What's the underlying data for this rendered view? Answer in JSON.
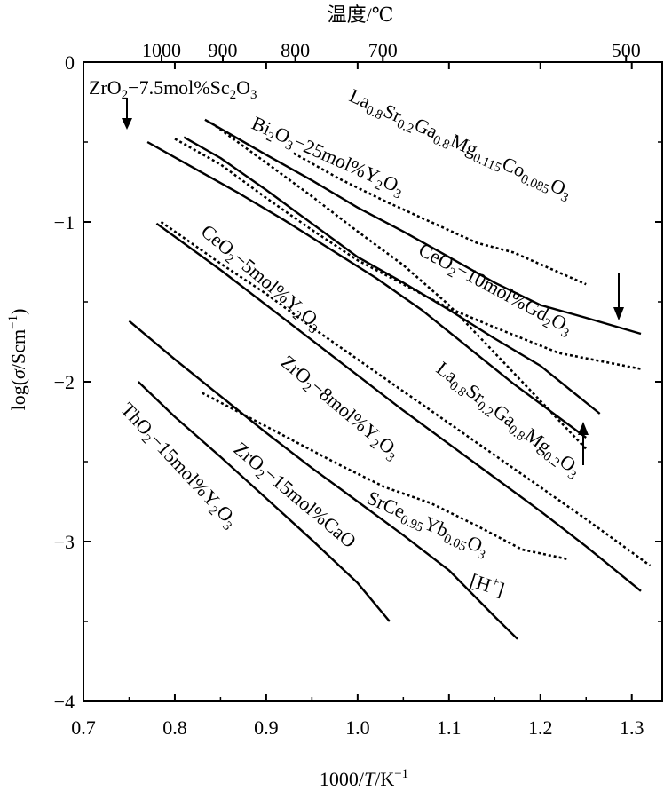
{
  "chart_data": {
    "type": "line",
    "title": "",
    "xlabel": "1000/T/K⁻¹",
    "ylabel": "log(σ/Scm⁻¹)",
    "xlim": [
      0.7,
      1.3333
    ],
    "ylim": [
      -4,
      0
    ],
    "x_ticks": [
      "0.7",
      "0.8",
      "0.9",
      "1.0",
      "1.1",
      "1.2",
      "1.3"
    ],
    "y_ticks": [
      "0",
      "−1",
      "−2",
      "−3",
      "−4"
    ],
    "top_axis": {
      "label": "温度/℃",
      "ticks": [
        {
          "label": "1000",
          "x": 0.7855
        },
        {
          "label": "900",
          "x": 0.8525
        },
        {
          "label": "800",
          "x": 0.9318
        },
        {
          "label": "700",
          "x": 1.0276
        },
        {
          "label": "500",
          "x": 1.2937
        }
      ]
    },
    "series": [
      {
        "name": "ZrO2–7.5mol%Sc2O3",
        "style": "dashed",
        "points": [
          [
            0.84,
            -0.38
          ],
          [
            0.9,
            -0.63
          ],
          [
            0.95,
            -0.84
          ],
          [
            1.0,
            -1.06
          ],
          [
            1.05,
            -1.27
          ],
          [
            1.1,
            -1.52
          ],
          [
            1.15,
            -1.82
          ],
          [
            1.2,
            -2.12
          ],
          [
            1.25,
            -2.42
          ]
        ]
      },
      {
        "name": "La0.8Sr0.2Ga0.8Mg0.115Co0.085O3",
        "style": "solid",
        "points": [
          [
            0.833,
            -0.36
          ],
          [
            0.9,
            -0.58
          ],
          [
            0.95,
            -0.74
          ],
          [
            1.0,
            -0.91
          ],
          [
            1.05,
            -1.06
          ],
          [
            1.1,
            -1.22
          ],
          [
            1.15,
            -1.38
          ],
          [
            1.2,
            -1.52
          ],
          [
            1.25,
            -1.6
          ],
          [
            1.31,
            -1.7
          ]
        ]
      },
      {
        "name": "Bi2O3–25mol%Y2O3",
        "style": "dashed",
        "points": [
          [
            0.93,
            -0.57
          ],
          [
            0.98,
            -0.73
          ],
          [
            1.03,
            -0.87
          ],
          [
            1.08,
            -1.0
          ],
          [
            1.13,
            -1.13
          ],
          [
            1.17,
            -1.19
          ],
          [
            1.25,
            -1.39
          ]
        ]
      },
      {
        "name": "CeO2–10mol%Gd2O3",
        "style": "solid",
        "points": [
          [
            0.81,
            -0.47
          ],
          [
            0.85,
            -0.6
          ],
          [
            0.9,
            -0.8
          ],
          [
            0.95,
            -1.01
          ],
          [
            1.0,
            -1.22
          ],
          [
            1.05,
            -1.38
          ],
          [
            1.1,
            -1.55
          ],
          [
            1.15,
            -1.73
          ],
          [
            1.2,
            -1.9
          ],
          [
            1.265,
            -2.2
          ]
        ]
      },
      {
        "name": "CeO2–10mol%Gd2O3 (dotted)",
        "style": "dashed",
        "points": [
          [
            0.8,
            -0.48
          ],
          [
            0.85,
            -0.64
          ],
          [
            0.9,
            -0.85
          ],
          [
            0.95,
            -1.05
          ],
          [
            1.0,
            -1.24
          ],
          [
            1.05,
            -1.39
          ],
          [
            1.1,
            -1.54
          ],
          [
            1.15,
            -1.66
          ],
          [
            1.22,
            -1.82
          ],
          [
            1.31,
            -1.92
          ]
        ]
      },
      {
        "name": "La0.8Sr0.2Ga0.8Mg0.2O3",
        "style": "solid",
        "points": [
          [
            0.77,
            -0.5
          ],
          [
            0.82,
            -0.66
          ],
          [
            0.87,
            -0.82
          ],
          [
            0.92,
            -0.99
          ],
          [
            0.97,
            -1.17
          ],
          [
            1.02,
            -1.35
          ],
          [
            1.07,
            -1.55
          ],
          [
            1.12,
            -1.78
          ],
          [
            1.17,
            -2.01
          ],
          [
            1.25,
            -2.35
          ]
        ]
      },
      {
        "name": "CeO2–5mol%Y2O3",
        "style": "dashed",
        "points": [
          [
            0.785,
            -1.0
          ],
          [
            0.85,
            -1.26
          ],
          [
            0.9,
            -1.45
          ],
          [
            0.95,
            -1.66
          ],
          [
            1.0,
            -1.86
          ],
          [
            1.05,
            -2.06
          ],
          [
            1.1,
            -2.26
          ],
          [
            1.15,
            -2.46
          ],
          [
            1.2,
            -2.66
          ],
          [
            1.25,
            -2.86
          ],
          [
            1.32,
            -3.15
          ]
        ]
      },
      {
        "name": "ZrO2–8mol%Y2O3",
        "style": "solid",
        "points": [
          [
            0.78,
            -1.01
          ],
          [
            0.85,
            -1.3
          ],
          [
            0.9,
            -1.52
          ],
          [
            0.95,
            -1.74
          ],
          [
            1.0,
            -1.96
          ],
          [
            1.05,
            -2.18
          ],
          [
            1.1,
            -2.39
          ],
          [
            1.15,
            -2.6
          ],
          [
            1.2,
            -2.81
          ],
          [
            1.25,
            -3.03
          ],
          [
            1.31,
            -3.31
          ]
        ]
      },
      {
        "name": "SrCe0.95Yb0.05O3",
        "style": "dashed",
        "points": [
          [
            0.83,
            -2.07
          ],
          [
            0.88,
            -2.22
          ],
          [
            0.93,
            -2.37
          ],
          [
            0.98,
            -2.52
          ],
          [
            1.03,
            -2.66
          ],
          [
            1.08,
            -2.76
          ],
          [
            1.13,
            -2.9
          ],
          [
            1.18,
            -3.05
          ],
          [
            1.23,
            -3.11
          ]
        ]
      },
      {
        "name": "ZrO2–15mol%CaO",
        "style": "solid",
        "points": [
          [
            0.75,
            -1.62
          ],
          [
            0.8,
            -1.86
          ],
          [
            0.85,
            -2.09
          ],
          [
            0.9,
            -2.32
          ],
          [
            0.95,
            -2.54
          ],
          [
            1.0,
            -2.75
          ],
          [
            1.05,
            -2.96
          ],
          [
            1.1,
            -3.18
          ],
          [
            1.15,
            -3.47
          ],
          [
            1.175,
            -3.61
          ]
        ]
      },
      {
        "name": "ThO2–15mol%Y2O3",
        "style": "solid",
        "points": [
          [
            0.76,
            -2.0
          ],
          [
            0.8,
            -2.22
          ],
          [
            0.85,
            -2.47
          ],
          [
            0.9,
            -2.73
          ],
          [
            0.95,
            -2.99
          ],
          [
            1.0,
            -3.26
          ],
          [
            1.035,
            -3.5
          ]
        ]
      }
    ],
    "annotations": [
      {
        "text": "[H⁺]"
      }
    ]
  },
  "labels": {
    "l1_a": "ZrO",
    "l1_b": "2",
    "l1_c": "−7.5mol%Sc",
    "l1_d": "2",
    "l1_e": "O",
    "l1_f": "3",
    "l2_a": "La",
    "l2_b": "0.8",
    "l2_c": "Sr",
    "l2_d": "0.2",
    "l2_e": "Ga",
    "l2_f": "0.8",
    "l2_g": "Mg",
    "l2_h": "0.115",
    "l2_i": "Co",
    "l2_j": "0.085",
    "l2_k": "O",
    "l2_l": "3",
    "l3_a": "Bi",
    "l3_b": "2",
    "l3_c": "O",
    "l3_d": "3",
    "l3_e": "−25mol%Y",
    "l3_f": "2",
    "l3_g": "O",
    "l3_h": "3",
    "l4_a": "CeO",
    "l4_b": "2",
    "l4_c": "−10mol%Gd",
    "l4_d": "2",
    "l4_e": "O",
    "l4_f": "3",
    "l5_a": "CeO",
    "l5_b": "2",
    "l5_c": "−5mol%Y",
    "l5_d": "2",
    "l5_e": "O",
    "l5_f": "3",
    "l6_a": "La",
    "l6_b": "0.8",
    "l6_c": "Sr",
    "l6_d": "0.2",
    "l6_e": "Ga",
    "l6_f": "0.8",
    "l6_g": "Mg",
    "l6_h": "0.2",
    "l6_i": "O",
    "l6_j": "3",
    "l7_a": "ZrO",
    "l7_b": "2",
    "l7_c": "−8mol%Y",
    "l7_d": "2",
    "l7_e": "O",
    "l7_f": "3",
    "l8_a": "SrCe",
    "l8_b": "0.95",
    "l8_c": "Yb",
    "l8_d": "0.05",
    "l8_e": "O",
    "l8_f": "3",
    "l9_a": "ZrO",
    "l9_b": "2",
    "l9_c": "−15mol%CaO",
    "l10_a": "ThO",
    "l10_b": "2",
    "l10_c": "−15mol%Y",
    "l10_d": "2",
    "l10_e": "O",
    "l10_f": "3",
    "hplus_a": "[H",
    "hplus_b": "+",
    "hplus_c": "]",
    "xlab_a": "1000/",
    "xlab_b": "T",
    "xlab_c": "/K",
    "xlab_d": "−1",
    "ylab_a": "log(",
    "ylab_b": "σ",
    "ylab_c": "/Scm",
    "ylab_d": "−1",
    "ylab_e": ")",
    "top_label": "温度/℃"
  }
}
